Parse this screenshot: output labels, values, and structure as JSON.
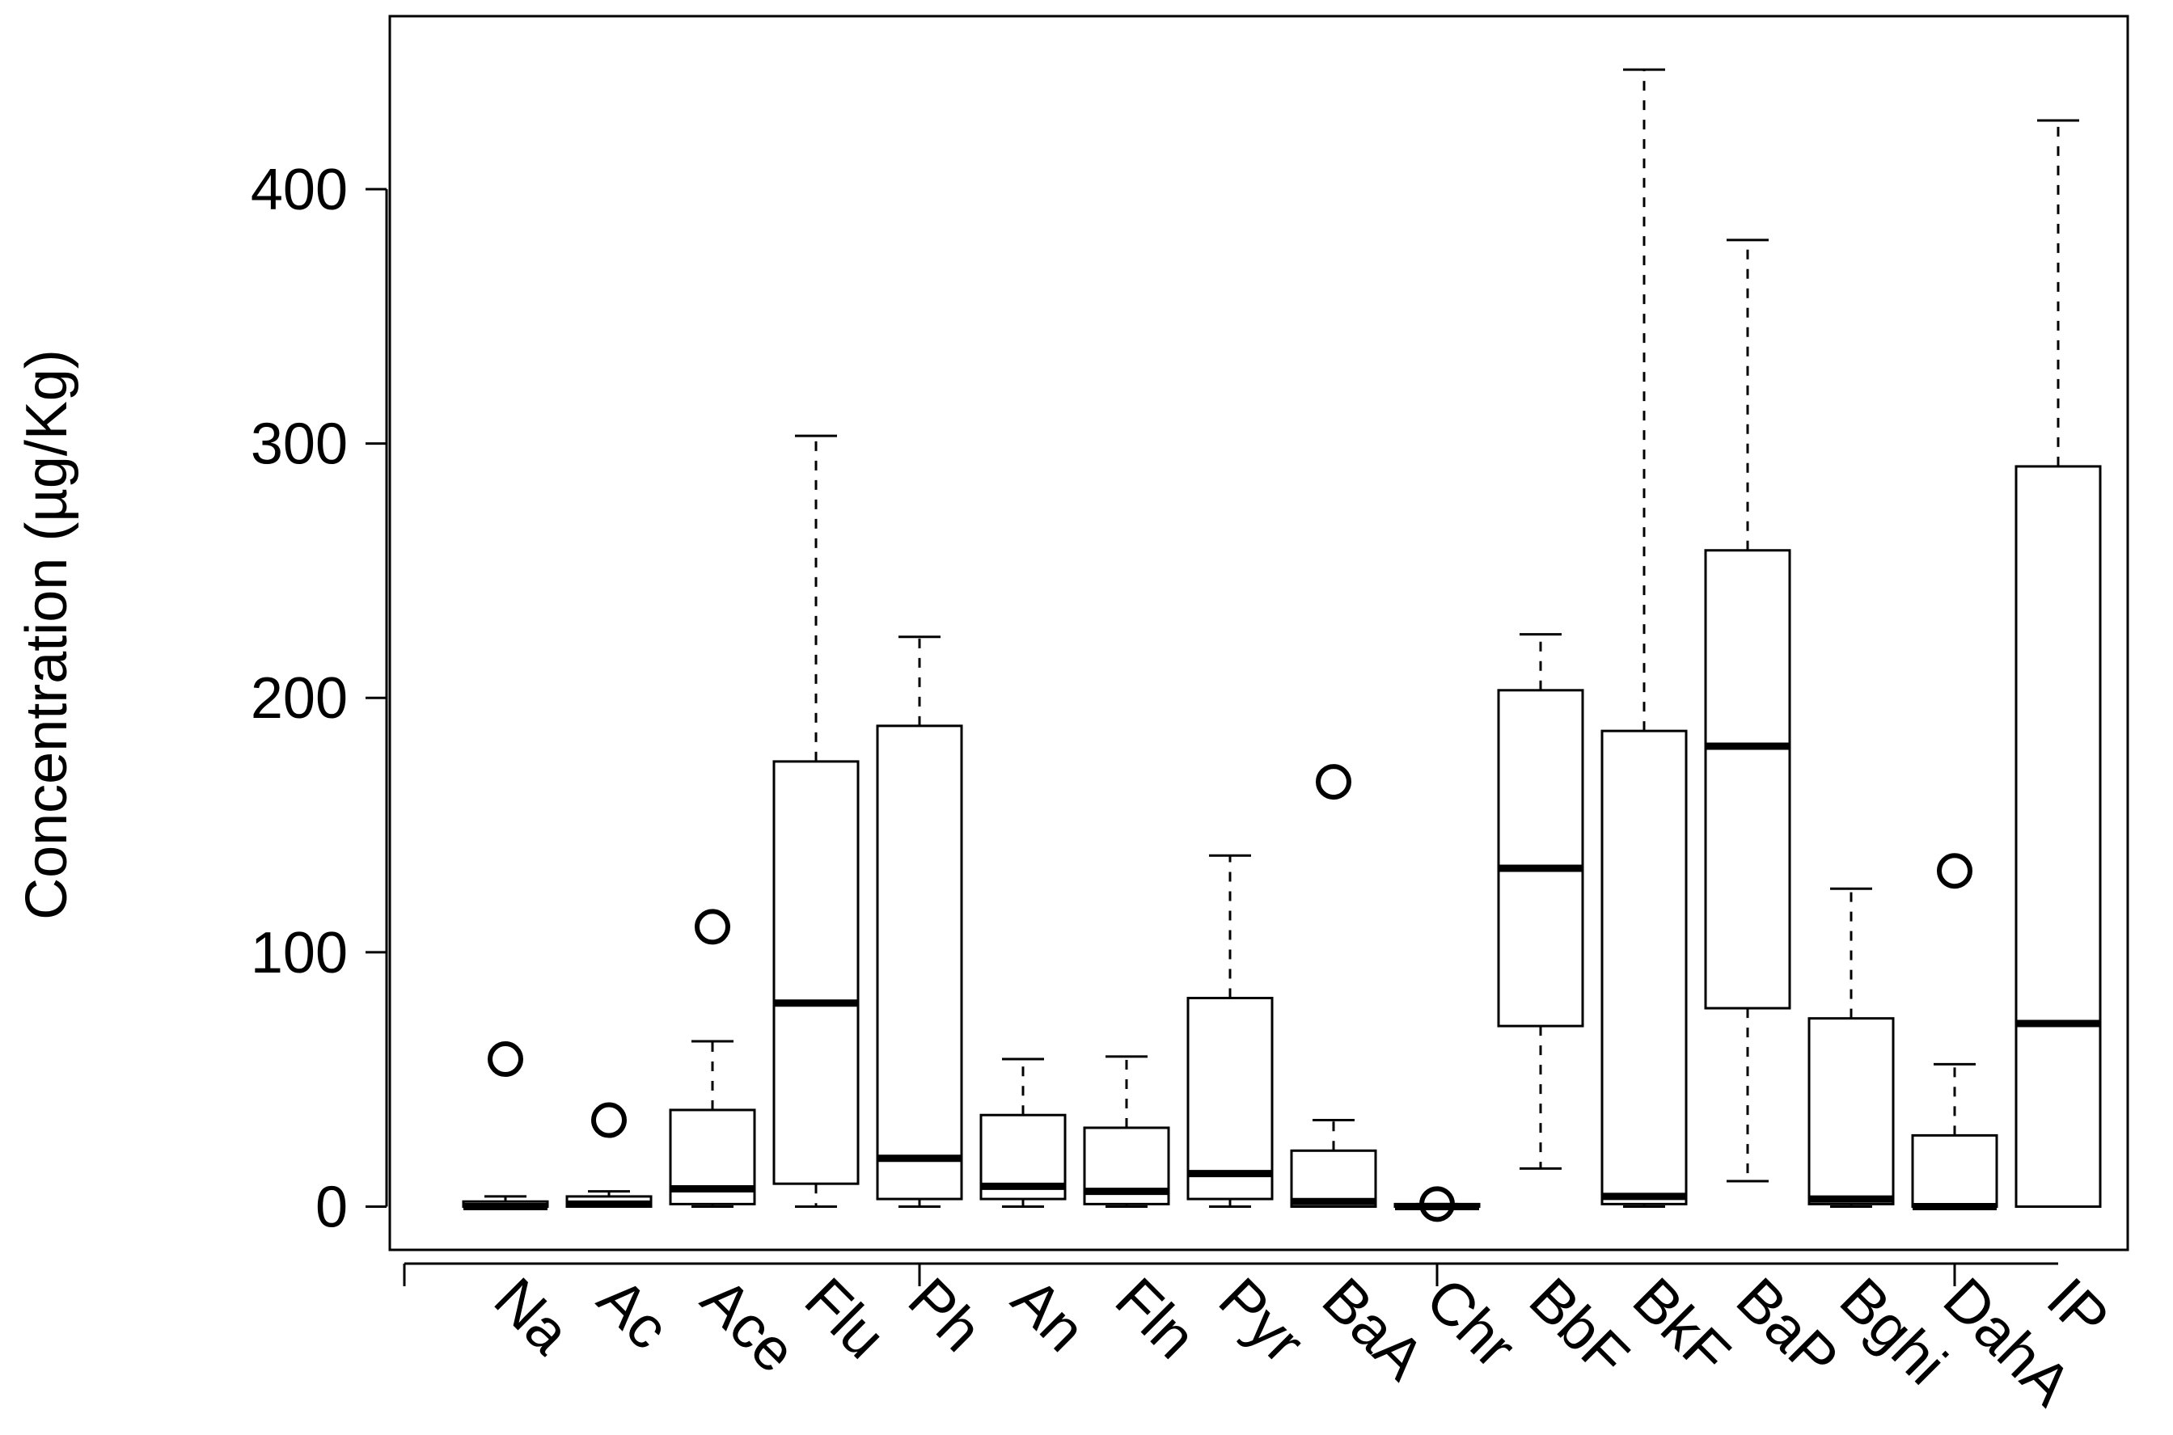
{
  "chart_data": {
    "type": "boxplot",
    "title": "",
    "xlabel": "",
    "ylabel": "Concentration (µg/Kg)",
    "ylim": [
      -17,
      468
    ],
    "yticks": [
      0,
      100,
      200,
      300,
      400
    ],
    "categories": [
      "Na",
      "Ac",
      "Ace",
      "Flu",
      "Ph",
      "An",
      "Fln",
      "Pyr",
      "BaA",
      "Chr",
      "BbF",
      "BkF",
      "BaP",
      "Bghi",
      "DahA",
      "IP"
    ],
    "labeled_axis_ticks": [
      "Ph",
      "Chr",
      "DahA"
    ],
    "boxes": [
      {
        "name": "Na",
        "min": 0,
        "q1": 0,
        "median": 0,
        "q3": 2,
        "max": 4,
        "outliers": [
          58
        ]
      },
      {
        "name": "Ac",
        "min": 0,
        "q1": 0,
        "median": 1,
        "q3": 4,
        "max": 6,
        "outliers": [
          34
        ]
      },
      {
        "name": "Ace",
        "min": 0,
        "q1": 1,
        "median": 7,
        "q3": 38,
        "max": 65,
        "outliers": [
          110
        ]
      },
      {
        "name": "Flu",
        "min": 0,
        "q1": 9,
        "median": 80,
        "q3": 175,
        "max": 303,
        "outliers": []
      },
      {
        "name": "Ph",
        "min": 0,
        "q1": 3,
        "median": 19,
        "q3": 189,
        "max": 224,
        "outliers": []
      },
      {
        "name": "An",
        "min": 0,
        "q1": 3,
        "median": 8,
        "q3": 36,
        "max": 58,
        "outliers": []
      },
      {
        "name": "Fln",
        "min": 0,
        "q1": 1,
        "median": 6,
        "q3": 31,
        "max": 59,
        "outliers": []
      },
      {
        "name": "Pyr",
        "min": 0,
        "q1": 3,
        "median": 13,
        "q3": 82,
        "max": 138,
        "outliers": []
      },
      {
        "name": "BaA",
        "min": 0,
        "q1": 0,
        "median": 2,
        "q3": 22,
        "max": 34,
        "outliers": [
          167
        ]
      },
      {
        "name": "Chr",
        "min": 0,
        "q1": 0,
        "median": 0,
        "q3": 1,
        "max": 1,
        "outliers": [
          1
        ]
      },
      {
        "name": "BbF",
        "min": 15,
        "q1": 71,
        "median": 133,
        "q3": 203,
        "max": 225,
        "outliers": []
      },
      {
        "name": "BkF",
        "min": 0,
        "q1": 1,
        "median": 4,
        "q3": 187,
        "max": 447,
        "outliers": []
      },
      {
        "name": "BaP",
        "min": 10,
        "q1": 78,
        "median": 181,
        "q3": 258,
        "max": 380,
        "outliers": []
      },
      {
        "name": "Bghi",
        "min": 0,
        "q1": 1,
        "median": 3,
        "q3": 74,
        "max": 125,
        "outliers": []
      },
      {
        "name": "DahA",
        "min": 0,
        "q1": 0,
        "median": 0,
        "q3": 28,
        "max": 56,
        "outliers": [
          132
        ]
      },
      {
        "name": "IP",
        "min": 0,
        "q1": 0,
        "median": 72,
        "q3": 291,
        "max": 427,
        "outliers": []
      }
    ],
    "grid": false,
    "legend": "none"
  }
}
